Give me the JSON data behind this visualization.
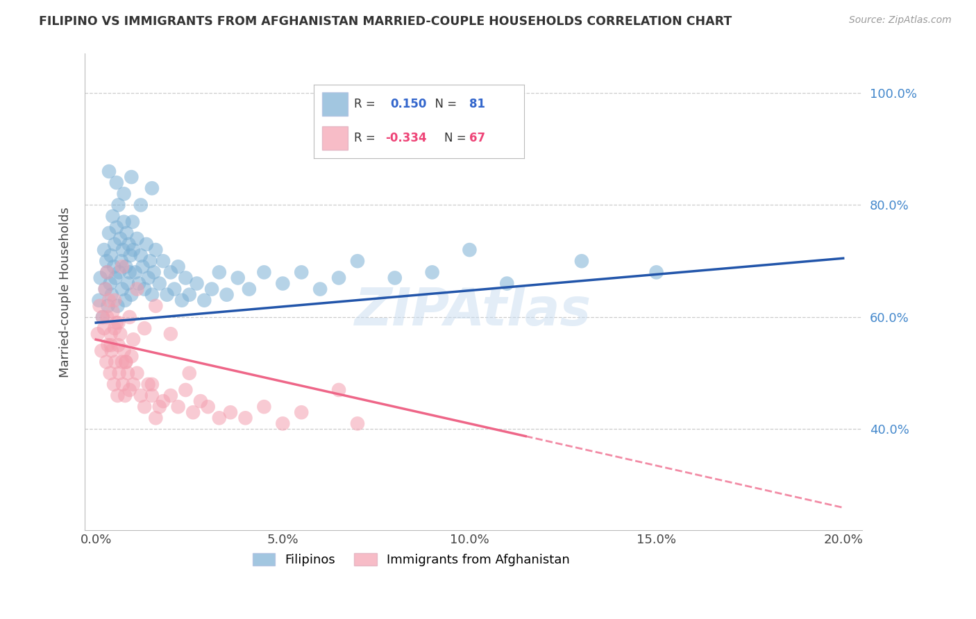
{
  "title": "FILIPINO VS IMMIGRANTS FROM AFGHANISTAN MARRIED-COUPLE HOUSEHOLDS CORRELATION CHART",
  "source": "Source: ZipAtlas.com",
  "ylabel": "Married-couple Households",
  "xlabel_ticks": [
    0.0,
    5.0,
    10.0,
    15.0,
    20.0
  ],
  "ylabel_ticks": [
    40.0,
    60.0,
    80.0,
    100.0
  ],
  "xlim": [
    -0.3,
    20.5
  ],
  "ylim": [
    22.0,
    107.0
  ],
  "legend_blue_R": "0.150",
  "legend_blue_N": "81",
  "legend_pink_R": "-0.334",
  "legend_pink_N": "67",
  "blue_color": "#7BAFD4",
  "pink_color": "#F4A0B0",
  "blue_line_color": "#2255AA",
  "pink_line_color": "#EE6688",
  "watermark": "ZIPAtlas",
  "filipinos_x": [
    0.08,
    0.12,
    0.18,
    0.22,
    0.25,
    0.28,
    0.3,
    0.32,
    0.35,
    0.38,
    0.4,
    0.42,
    0.45,
    0.48,
    0.5,
    0.52,
    0.55,
    0.58,
    0.6,
    0.62,
    0.65,
    0.68,
    0.7,
    0.72,
    0.75,
    0.78,
    0.8,
    0.82,
    0.85,
    0.88,
    0.9,
    0.92,
    0.95,
    0.98,
    1.0,
    1.05,
    1.1,
    1.15,
    1.2,
    1.25,
    1.3,
    1.35,
    1.4,
    1.45,
    1.5,
    1.55,
    1.6,
    1.7,
    1.8,
    1.9,
    2.0,
    2.1,
    2.2,
    2.3,
    2.4,
    2.5,
    2.7,
    2.9,
    3.1,
    3.3,
    3.5,
    3.8,
    4.1,
    4.5,
    5.0,
    5.5,
    6.0,
    6.5,
    7.0,
    8.0,
    9.0,
    10.0,
    11.0,
    13.0,
    15.0,
    0.35,
    0.55,
    0.75,
    0.95,
    1.2,
    1.5
  ],
  "filipinos_y": [
    63,
    67,
    60,
    72,
    65,
    70,
    68,
    62,
    75,
    66,
    71,
    64,
    78,
    69,
    73,
    67,
    76,
    62,
    80,
    68,
    74,
    70,
    65,
    72,
    77,
    63,
    69,
    75,
    66,
    73,
    68,
    71,
    64,
    77,
    72,
    68,
    74,
    66,
    71,
    69,
    65,
    73,
    67,
    70,
    64,
    68,
    72,
    66,
    70,
    64,
    68,
    65,
    69,
    63,
    67,
    64,
    66,
    63,
    65,
    68,
    64,
    67,
    65,
    68,
    66,
    68,
    65,
    67,
    70,
    67,
    68,
    72,
    66,
    70,
    68,
    86,
    84,
    82,
    85,
    80,
    83
  ],
  "afghanistan_x": [
    0.05,
    0.1,
    0.15,
    0.18,
    0.22,
    0.25,
    0.28,
    0.3,
    0.32,
    0.35,
    0.38,
    0.4,
    0.42,
    0.45,
    0.48,
    0.5,
    0.52,
    0.55,
    0.58,
    0.6,
    0.62,
    0.65,
    0.7,
    0.72,
    0.75,
    0.78,
    0.8,
    0.85,
    0.9,
    0.95,
    1.0,
    1.1,
    1.2,
    1.3,
    1.4,
    1.5,
    1.6,
    1.7,
    1.8,
    2.0,
    2.2,
    2.4,
    2.6,
    2.8,
    3.0,
    3.3,
    3.6,
    4.0,
    4.5,
    5.0,
    5.5,
    6.5,
    7.0,
    0.3,
    0.5,
    0.7,
    0.9,
    1.1,
    1.3,
    1.6,
    2.0,
    2.5,
    0.4,
    0.6,
    0.8,
    1.0,
    1.5
  ],
  "afghanistan_y": [
    57,
    62,
    54,
    60,
    58,
    65,
    52,
    60,
    55,
    63,
    50,
    57,
    54,
    61,
    48,
    58,
    52,
    59,
    46,
    55,
    50,
    57,
    52,
    48,
    54,
    46,
    52,
    50,
    47,
    53,
    48,
    50,
    46,
    44,
    48,
    46,
    42,
    44,
    45,
    46,
    44,
    47,
    43,
    45,
    44,
    42,
    43,
    42,
    44,
    41,
    43,
    47,
    41,
    68,
    63,
    69,
    60,
    65,
    58,
    62,
    57,
    50,
    55,
    59,
    52,
    56,
    48
  ],
  "blue_line_x0": 0.0,
  "blue_line_y0": 59.0,
  "blue_line_x1": 20.0,
  "blue_line_y1": 70.5,
  "pink_line_x0": 0.0,
  "pink_line_y0": 56.0,
  "pink_line_x1": 20.0,
  "pink_line_y1": 26.0,
  "pink_solid_end_x": 11.5,
  "watermark_text": "ZIPAtlas"
}
